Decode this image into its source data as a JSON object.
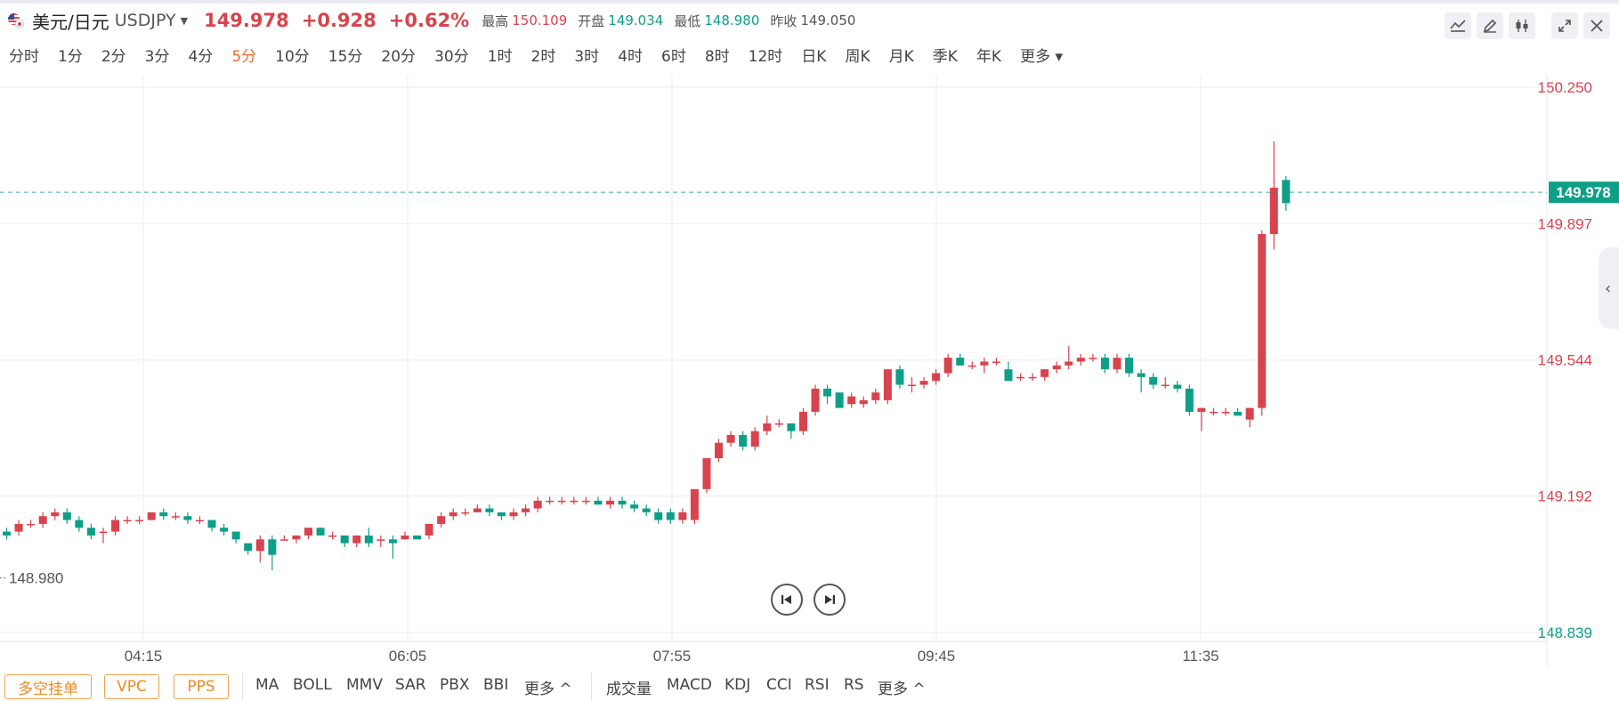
{
  "instrument": {
    "name": "美元/日元",
    "symbol": "USDJPY",
    "price": "149.978",
    "change": "+0.928",
    "change_pct": "+0.62%",
    "high_label": "最高",
    "high": "150.109",
    "open_label": "开盘",
    "open": "149.034",
    "low_label": "最低",
    "low": "148.980",
    "prev_close_label": "昨收",
    "prev_close": "149.050"
  },
  "intervals": [
    "分时",
    "1分",
    "2分",
    "3分",
    "4分",
    "5分",
    "10分",
    "15分",
    "20分",
    "30分",
    "1时",
    "2时",
    "3时",
    "4时",
    "6时",
    "8时",
    "12时",
    "日K",
    "周K",
    "月K",
    "季K",
    "年K",
    "更多"
  ],
  "active_interval": "5分",
  "bottombar": {
    "pills": [
      "多空挂单",
      "VPC",
      "PPS"
    ],
    "main_indicators": [
      "MA",
      "BOLL",
      "MMV",
      "SAR",
      "PBX",
      "BBI",
      "更多"
    ],
    "sub_indicators": [
      "成交量",
      "MACD",
      "KDJ",
      "CCI",
      "RSI",
      "RS",
      "更多"
    ]
  },
  "colors": {
    "up": "#d8434d",
    "down": "#0d9f87",
    "accent": "#f26c2f",
    "pill": "#ef8a1f"
  },
  "icons": [
    "indicator-icon",
    "pen-icon",
    "candle-settings-icon",
    "expand-icon",
    "close-icon",
    "prev-icon",
    "next-icon",
    "collapse-chevron-icon"
  ],
  "chart_data": {
    "type": "candlestick",
    "y_ticks": [
      "150.250",
      "149.897",
      "149.544",
      "149.192",
      "148.839"
    ],
    "x_ticks": [
      "04:15",
      "06:05",
      "07:55",
      "09:45",
      "11:35"
    ],
    "ylim": [
      148.839,
      150.25
    ],
    "current_price": "149.978",
    "high_marker": "150.109",
    "low_marker": "148.980",
    "grid": true,
    "ohlc": [
      [
        149.1,
        149.11,
        149.08,
        149.09
      ],
      [
        149.1,
        149.13,
        149.09,
        149.12
      ],
      [
        149.12,
        149.13,
        149.11,
        149.12
      ],
      [
        149.12,
        149.15,
        149.11,
        149.14
      ],
      [
        149.14,
        149.16,
        149.13,
        149.15
      ],
      [
        149.15,
        149.16,
        149.12,
        149.13
      ],
      [
        149.13,
        149.14,
        149.1,
        149.11
      ],
      [
        149.11,
        149.12,
        149.08,
        149.09
      ],
      [
        149.1,
        149.11,
        149.07,
        149.1
      ],
      [
        149.1,
        149.14,
        149.09,
        149.13
      ],
      [
        149.13,
        149.14,
        149.12,
        149.13
      ],
      [
        149.13,
        149.14,
        149.12,
        149.13
      ],
      [
        149.13,
        149.15,
        149.13,
        149.15
      ],
      [
        149.15,
        149.16,
        149.13,
        149.14
      ],
      [
        149.14,
        149.15,
        149.13,
        149.14
      ],
      [
        149.14,
        149.15,
        149.12,
        149.13
      ],
      [
        149.13,
        149.14,
        149.12,
        149.13
      ],
      [
        149.13,
        149.13,
        149.1,
        149.11
      ],
      [
        149.11,
        149.12,
        149.09,
        149.1
      ],
      [
        149.1,
        149.1,
        149.07,
        149.08
      ],
      [
        149.07,
        149.07,
        149.04,
        149.05
      ],
      [
        149.05,
        149.09,
        149.02,
        149.08
      ],
      [
        149.08,
        149.09,
        149.0,
        149.04
      ],
      [
        149.08,
        149.09,
        149.08,
        149.08
      ],
      [
        149.08,
        149.09,
        149.07,
        149.09
      ],
      [
        149.09,
        149.11,
        149.08,
        149.11
      ],
      [
        149.11,
        149.11,
        149.09,
        149.09
      ],
      [
        149.09,
        149.1,
        149.08,
        149.09
      ],
      [
        149.09,
        149.09,
        149.06,
        149.07
      ],
      [
        149.07,
        149.09,
        149.06,
        149.09
      ],
      [
        149.09,
        149.11,
        149.06,
        149.07
      ],
      [
        149.08,
        149.09,
        149.06,
        149.08
      ],
      [
        149.08,
        149.09,
        149.03,
        149.07
      ],
      [
        149.08,
        149.1,
        149.08,
        149.09
      ],
      [
        149.09,
        149.09,
        149.08,
        149.08
      ],
      [
        149.09,
        149.12,
        149.08,
        149.12
      ],
      [
        149.12,
        149.15,
        149.11,
        149.14
      ],
      [
        149.14,
        149.16,
        149.13,
        149.15
      ],
      [
        149.15,
        149.16,
        149.14,
        149.15
      ],
      [
        149.15,
        149.17,
        149.15,
        149.16
      ],
      [
        149.16,
        149.17,
        149.14,
        149.15
      ],
      [
        149.15,
        149.15,
        149.13,
        149.14
      ],
      [
        149.14,
        149.16,
        149.13,
        149.15
      ],
      [
        149.15,
        149.17,
        149.14,
        149.16
      ],
      [
        149.16,
        149.19,
        149.15,
        149.18
      ],
      [
        149.18,
        149.19,
        149.17,
        149.18
      ],
      [
        149.18,
        149.19,
        149.17,
        149.18
      ],
      [
        149.18,
        149.19,
        149.17,
        149.18
      ],
      [
        149.18,
        149.19,
        149.17,
        149.18
      ],
      [
        149.18,
        149.19,
        149.17,
        149.17
      ],
      [
        149.17,
        149.19,
        149.16,
        149.18
      ],
      [
        149.18,
        149.19,
        149.16,
        149.17
      ],
      [
        149.17,
        149.18,
        149.15,
        149.16
      ],
      [
        149.16,
        149.17,
        149.14,
        149.15
      ],
      [
        149.15,
        149.16,
        149.12,
        149.13
      ],
      [
        149.15,
        149.16,
        149.12,
        149.13
      ],
      [
        149.13,
        149.16,
        149.12,
        149.15
      ],
      [
        149.13,
        149.21,
        149.12,
        149.21
      ],
      [
        149.21,
        149.29,
        149.2,
        149.29
      ],
      [
        149.29,
        149.34,
        149.28,
        149.33
      ],
      [
        149.33,
        149.36,
        149.32,
        149.35
      ],
      [
        149.35,
        149.36,
        149.31,
        149.32
      ],
      [
        149.32,
        149.37,
        149.31,
        149.36
      ],
      [
        149.36,
        149.4,
        149.35,
        149.38
      ],
      [
        149.38,
        149.39,
        149.37,
        149.38
      ],
      [
        149.38,
        149.38,
        149.34,
        149.36
      ],
      [
        149.36,
        149.42,
        149.35,
        149.41
      ],
      [
        149.41,
        149.48,
        149.4,
        149.47
      ],
      [
        149.47,
        149.48,
        149.43,
        149.45
      ],
      [
        149.46,
        149.46,
        149.42,
        149.42
      ],
      [
        149.43,
        149.46,
        149.42,
        149.45
      ],
      [
        149.43,
        149.45,
        149.42,
        149.44
      ],
      [
        149.44,
        149.47,
        149.43,
        149.46
      ],
      [
        149.44,
        149.52,
        149.43,
        149.52
      ],
      [
        149.52,
        149.53,
        149.47,
        149.48
      ],
      [
        149.48,
        149.5,
        149.46,
        149.48
      ],
      [
        149.48,
        149.5,
        149.47,
        149.49
      ],
      [
        149.49,
        149.52,
        149.48,
        149.51
      ],
      [
        149.51,
        149.56,
        149.5,
        149.55
      ],
      [
        149.55,
        149.56,
        149.53,
        149.53
      ],
      [
        149.53,
        149.54,
        149.52,
        149.53
      ],
      [
        149.53,
        149.55,
        149.51,
        149.54
      ],
      [
        149.54,
        149.55,
        149.53,
        149.54
      ],
      [
        149.52,
        149.54,
        149.49,
        149.49
      ],
      [
        149.5,
        149.51,
        149.49,
        149.5
      ],
      [
        149.5,
        149.51,
        149.49,
        149.5
      ],
      [
        149.5,
        149.52,
        149.49,
        149.52
      ],
      [
        149.52,
        149.54,
        149.51,
        149.53
      ],
      [
        149.53,
        149.58,
        149.52,
        149.54
      ],
      [
        149.54,
        149.56,
        149.53,
        149.55
      ],
      [
        149.55,
        149.56,
        149.54,
        149.55
      ],
      [
        149.55,
        149.56,
        149.51,
        149.52
      ],
      [
        149.52,
        149.56,
        149.51,
        149.55
      ],
      [
        149.55,
        149.56,
        149.5,
        149.51
      ],
      [
        149.51,
        149.52,
        149.46,
        149.5
      ],
      [
        149.5,
        149.51,
        149.47,
        149.48
      ],
      [
        149.48,
        149.5,
        149.47,
        149.48
      ],
      [
        149.48,
        149.49,
        149.46,
        149.47
      ],
      [
        149.47,
        149.48,
        149.4,
        149.41
      ],
      [
        149.41,
        149.42,
        149.36,
        149.42
      ],
      [
        149.41,
        149.42,
        149.4,
        149.41
      ],
      [
        149.41,
        149.42,
        149.4,
        149.41
      ],
      [
        149.41,
        149.42,
        149.4,
        149.4
      ],
      [
        149.39,
        149.42,
        149.37,
        149.42
      ],
      [
        149.42,
        149.88,
        149.4,
        149.87
      ],
      [
        149.87,
        150.11,
        149.83,
        149.99
      ],
      [
        150.01,
        150.02,
        149.93,
        149.95
      ]
    ]
  }
}
